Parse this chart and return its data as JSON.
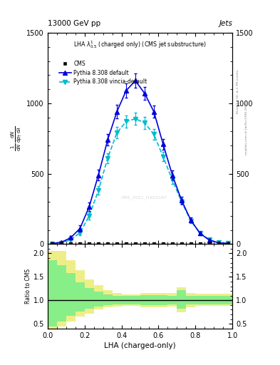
{
  "title_top": "13000 GeV pp",
  "title_right": "Jets",
  "right_label_top": "Rivet 3.1.10; ≥ 2.7M events",
  "right_label_bot": "mcplots.cern.ch [arXiv:1306.3436]",
  "legend_title": "LHA λ¹₀.₅ (charged only) (CMS jet substructure)",
  "watermark": "CMS_2021_I1920187",
  "xlabel": "LHA (charged-only)",
  "lha_edges": [
    0.0,
    0.05,
    0.1,
    0.15,
    0.2,
    0.25,
    0.3,
    0.35,
    0.4,
    0.45,
    0.5,
    0.55,
    0.6,
    0.65,
    0.7,
    0.75,
    0.8,
    0.85,
    0.9,
    0.95,
    1.0
  ],
  "pythia_default_x": [
    0.025,
    0.075,
    0.125,
    0.175,
    0.225,
    0.275,
    0.325,
    0.375,
    0.425,
    0.475,
    0.525,
    0.575,
    0.625,
    0.675,
    0.725,
    0.775,
    0.825,
    0.875,
    0.925,
    0.975
  ],
  "pythia_default_y": [
    4,
    12,
    45,
    110,
    265,
    490,
    740,
    940,
    1090,
    1160,
    1070,
    940,
    710,
    490,
    310,
    170,
    75,
    28,
    9,
    4
  ],
  "pythia_default_yerr": [
    2,
    6,
    12,
    22,
    30,
    38,
    42,
    48,
    52,
    52,
    48,
    42,
    38,
    32,
    26,
    18,
    12,
    7,
    3,
    2
  ],
  "pythia_vincia_x": [
    0.025,
    0.075,
    0.125,
    0.175,
    0.225,
    0.275,
    0.325,
    0.375,
    0.425,
    0.475,
    0.525,
    0.575,
    0.625,
    0.675,
    0.725,
    0.775,
    0.825,
    0.875,
    0.925,
    0.975
  ],
  "pythia_vincia_y": [
    3,
    8,
    30,
    80,
    200,
    380,
    610,
    790,
    870,
    890,
    860,
    780,
    620,
    455,
    300,
    165,
    78,
    30,
    10,
    5
  ],
  "pythia_vincia_yerr": [
    2,
    5,
    10,
    18,
    25,
    30,
    35,
    40,
    42,
    43,
    42,
    38,
    33,
    28,
    22,
    16,
    10,
    6,
    3,
    2
  ],
  "ylim_main": [
    0,
    1400
  ],
  "yticks_main": [
    0,
    500,
    1000,
    1500
  ],
  "lha_edges_ratio": [
    0.0,
    0.05,
    0.1,
    0.15,
    0.2,
    0.25,
    0.3,
    0.35,
    0.4,
    0.45,
    0.5,
    0.55,
    0.6,
    0.65,
    0.7,
    0.75,
    0.8,
    0.85,
    0.9,
    0.95,
    1.0
  ],
  "ratio_yellow_lo": [
    0.3,
    0.45,
    0.55,
    0.65,
    0.72,
    0.8,
    0.85,
    0.87,
    0.88,
    0.88,
    0.85,
    0.85,
    0.85,
    0.87,
    0.75,
    0.85,
    0.88,
    0.88,
    0.88,
    0.88
  ],
  "ratio_yellow_hi": [
    2.05,
    2.05,
    1.85,
    1.65,
    1.45,
    1.32,
    1.22,
    1.16,
    1.13,
    1.13,
    1.16,
    1.16,
    1.16,
    1.16,
    1.28,
    1.16,
    1.14,
    1.14,
    1.14,
    1.14
  ],
  "ratio_green_lo": [
    0.45,
    0.55,
    0.67,
    0.76,
    0.82,
    0.87,
    0.9,
    0.91,
    0.92,
    0.92,
    0.9,
    0.9,
    0.9,
    0.91,
    0.82,
    0.91,
    0.92,
    0.92,
    0.92,
    0.92
  ],
  "ratio_green_hi": [
    1.85,
    1.75,
    1.58,
    1.38,
    1.26,
    1.19,
    1.13,
    1.1,
    1.09,
    1.09,
    1.11,
    1.11,
    1.11,
    1.1,
    1.22,
    1.1,
    1.09,
    1.09,
    1.09,
    1.09
  ],
  "ylim_ratio": [
    0.4,
    2.2
  ],
  "yticks_ratio": [
    0.5,
    1.0,
    1.5,
    2.0
  ],
  "color_cms": "#000000",
  "color_pythia_default": "#0000dd",
  "color_pythia_vincia": "#00bbcc",
  "color_yellow": "#eeee88",
  "color_green": "#88ee88",
  "fig_width": 3.93,
  "fig_height": 5.12
}
